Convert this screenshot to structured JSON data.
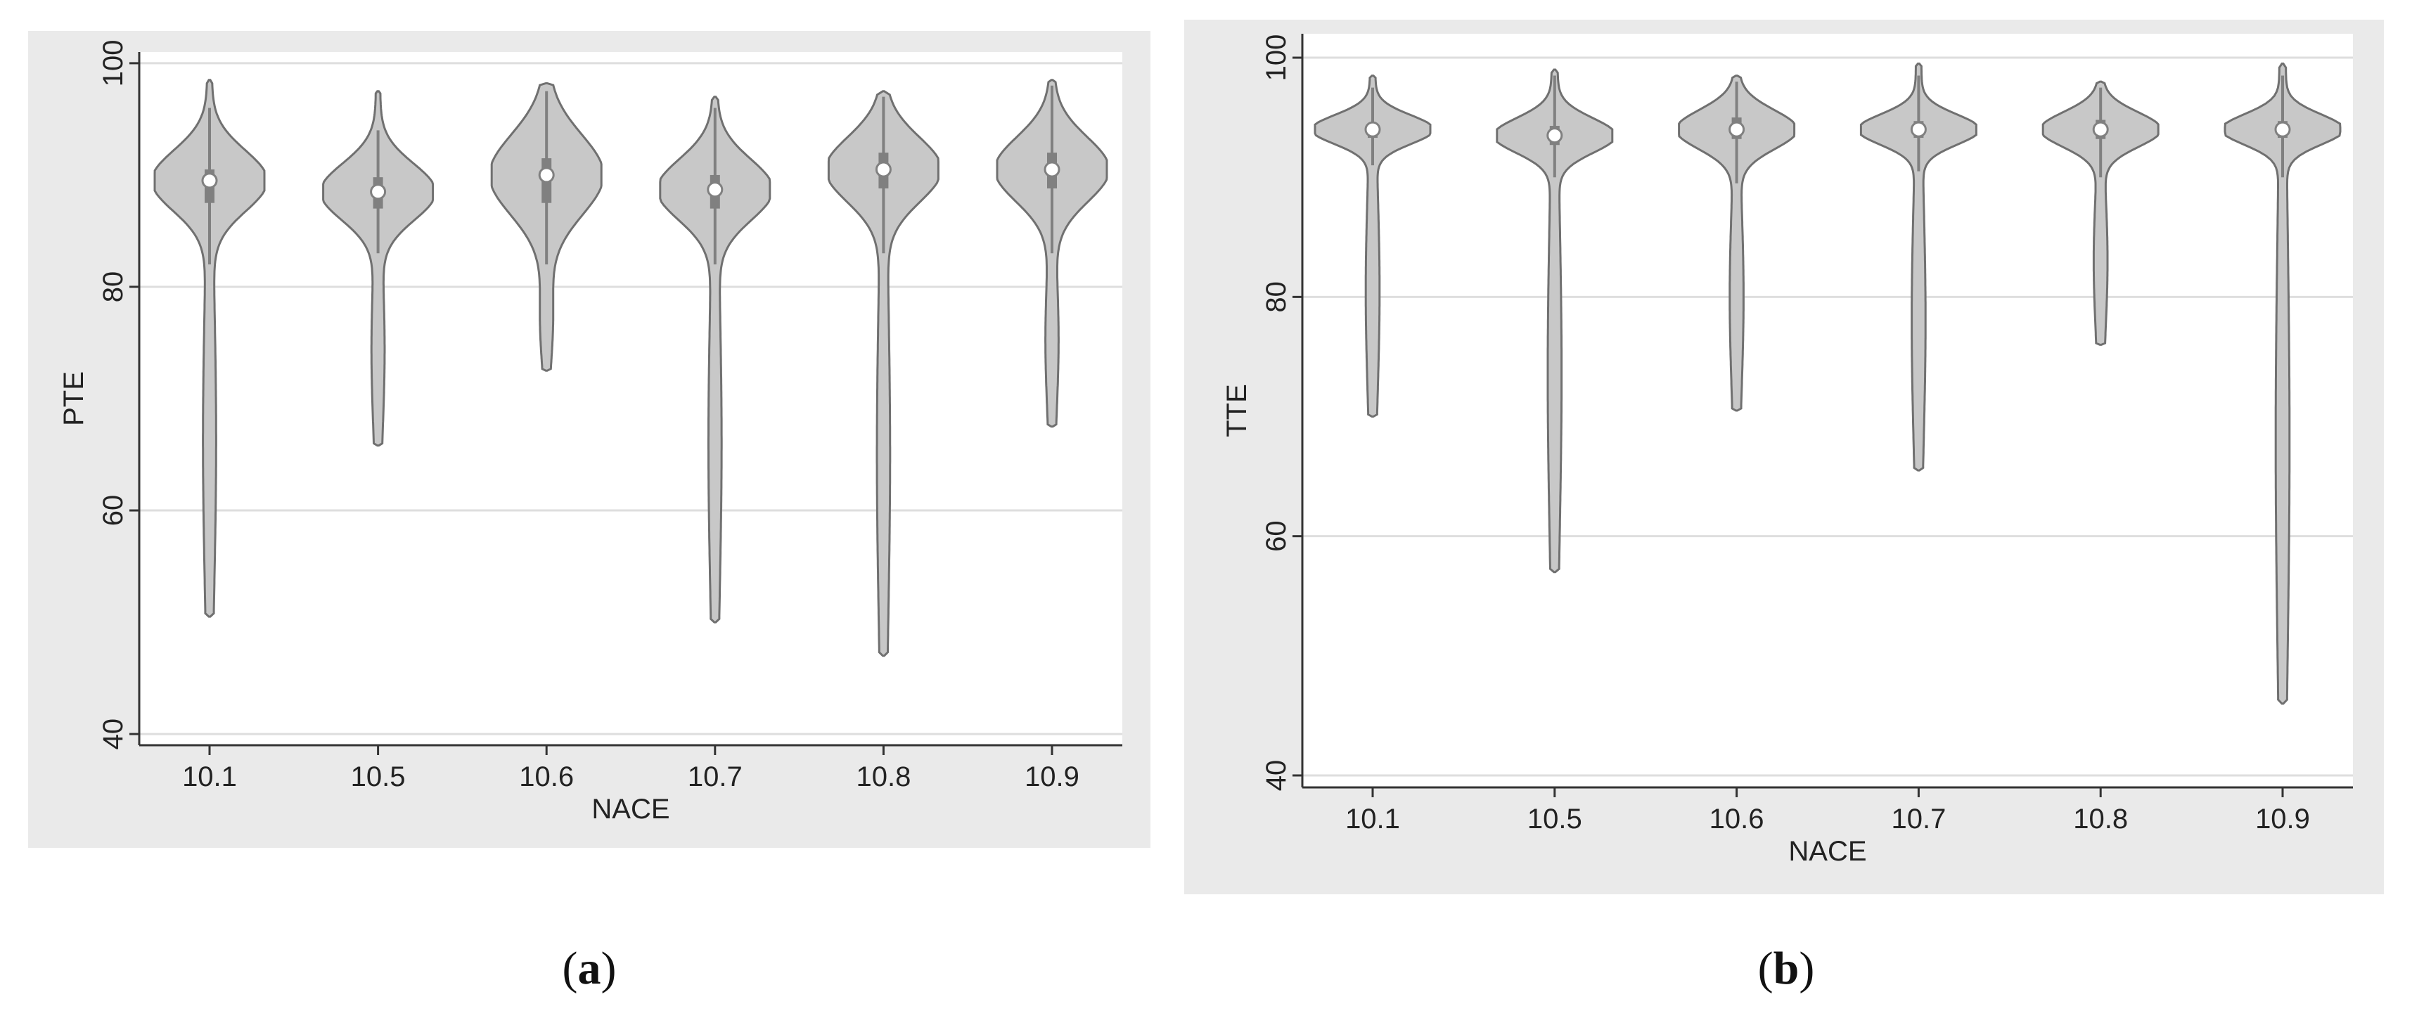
{
  "panels": [
    {
      "id": "a",
      "caption_letter": "a",
      "chart_data": {
        "type": "violin",
        "title": "",
        "xlabel": "NACE",
        "ylabel": "PTE",
        "categories": [
          "10.1",
          "10.5",
          "10.6",
          "10.7",
          "10.8",
          "10.9"
        ],
        "ylim": [
          39,
          101
        ],
        "yticks": [
          40,
          60,
          80,
          100
        ],
        "grid": true,
        "medians": [
          89.5,
          88.5,
          90.0,
          88.7,
          90.5,
          90.5
        ],
        "quartiles": [
          [
            87.5,
            90.5
          ],
          [
            87.0,
            89.8
          ],
          [
            87.5,
            91.5
          ],
          [
            87.0,
            90.0
          ],
          [
            88.8,
            92.0
          ],
          [
            88.8,
            92.0
          ]
        ],
        "whiskers": [
          [
            82.0,
            96.0
          ],
          [
            83.0,
            94.0
          ],
          [
            82.0,
            97.5
          ],
          [
            82.0,
            96.0
          ],
          [
            83.0,
            97.0
          ],
          [
            83.0,
            98.0
          ]
        ],
        "ranges": [
          [
            50.5,
            98.5
          ],
          [
            65.8,
            97.5
          ],
          [
            72.5,
            98.2
          ],
          [
            50.0,
            97.0
          ],
          [
            47.0,
            97.5
          ],
          [
            67.5,
            98.5
          ]
        ],
        "colors": {
          "violin_fill": "#c8c8c8",
          "violin_stroke": "#707070",
          "box": "#808080",
          "median": "#ffffff",
          "grid": "#dedede",
          "axis": "#333333",
          "panel_bg": "#eaeaea",
          "plot_bg": "#ffffff"
        }
      }
    },
    {
      "id": "b",
      "caption_letter": "b",
      "chart_data": {
        "type": "violin",
        "title": "",
        "xlabel": "NACE",
        "ylabel": "TTE",
        "categories": [
          "10.1",
          "10.5",
          "10.6",
          "10.7",
          "10.8",
          "10.9"
        ],
        "ylim": [
          39,
          102
        ],
        "yticks": [
          40,
          60,
          80,
          100
        ],
        "grid": true,
        "medians": [
          94.0,
          93.5,
          94.0,
          94.0,
          94.0,
          94.0
        ],
        "quartiles": [
          [
            93.3,
            94.5
          ],
          [
            92.7,
            94.3
          ],
          [
            93.2,
            95.0
          ],
          [
            93.3,
            94.7
          ],
          [
            93.2,
            94.8
          ],
          [
            93.3,
            94.7
          ]
        ],
        "whiskers": [
          [
            91.0,
            97.5
          ],
          [
            90.0,
            98.5
          ],
          [
            89.5,
            98.0
          ],
          [
            90.5,
            98.5
          ],
          [
            90.0,
            97.5
          ],
          [
            90.0,
            98.5
          ]
        ],
        "ranges": [
          [
            70.0,
            98.5
          ],
          [
            57.0,
            99.0
          ],
          [
            70.5,
            98.5
          ],
          [
            65.5,
            99.5
          ],
          [
            76.0,
            98.0
          ],
          [
            46.0,
            99.5
          ]
        ],
        "colors": {
          "violin_fill": "#c8c8c8",
          "violin_stroke": "#707070",
          "box": "#808080",
          "median": "#ffffff",
          "grid": "#dedede",
          "axis": "#333333",
          "panel_bg": "#eaeaea",
          "plot_bg": "#ffffff"
        }
      }
    }
  ]
}
